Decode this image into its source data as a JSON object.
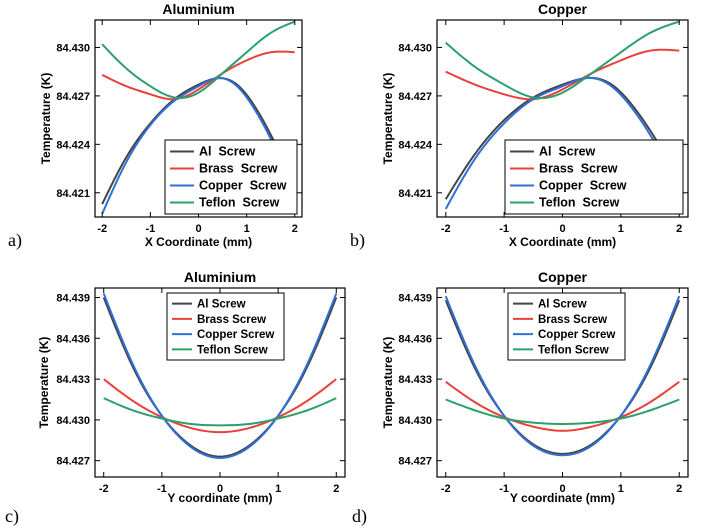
{
  "chart_data": [
    {
      "panel": "a)",
      "type": "line",
      "title": "Aluminium",
      "xlabel": "X Coordinate (mm)",
      "ylabel": "Temperature (K)",
      "xlim": [
        -2.15,
        2.15
      ],
      "ylim": [
        84.4195,
        84.4317
      ],
      "xticks": [
        -2,
        -1,
        0,
        1,
        2
      ],
      "yticks": [
        84.421,
        84.424,
        84.427,
        84.43
      ],
      "ytick_labels": [
        "84.421",
        "84.424",
        "84.427",
        "84.430"
      ],
      "legend_position": "lower-center",
      "series": [
        {
          "name": "Al  Screw",
          "color": "#444444",
          "x": [
            -2,
            -1.5,
            -1,
            -0.5,
            0,
            0.4,
            0.8,
            1.2,
            1.6,
            2
          ],
          "y": [
            84.4203,
            84.4232,
            84.4253,
            84.4268,
            84.4277,
            84.4281,
            84.4277,
            84.4262,
            84.424,
            84.4214
          ]
        },
        {
          "name": "Brass  Screw",
          "color": "#e8413c",
          "x": [
            -2,
            -1.5,
            -1,
            -0.5,
            0,
            0.5,
            1,
            1.5,
            2
          ],
          "y": [
            84.4283,
            84.4276,
            84.4271,
            84.4268,
            84.4274,
            84.4284,
            84.4292,
            84.4297,
            84.4297
          ]
        },
        {
          "name": "Copper  Screw",
          "color": "#2f6fd6",
          "x": [
            -2,
            -1.5,
            -1,
            -0.5,
            0,
            0.4,
            0.8,
            1.2,
            1.6,
            2
          ],
          "y": [
            84.4197,
            84.4229,
            84.4252,
            84.4267,
            84.4276,
            84.4281,
            84.4276,
            84.426,
            84.4237,
            84.4208
          ]
        },
        {
          "name": "Teflon  Screw",
          "color": "#2aa06a",
          "x": [
            -2,
            -1.5,
            -1,
            -0.5,
            0,
            0.5,
            1,
            1.5,
            2
          ],
          "y": [
            84.4302,
            84.4287,
            84.4276,
            84.4269,
            84.4272,
            84.4284,
            84.4297,
            84.4309,
            84.4316
          ]
        }
      ]
    },
    {
      "panel": "b)",
      "type": "line",
      "title": "Copper",
      "xlabel": "X Coordinate (mm)",
      "ylabel": "Temperature (K)",
      "xlim": [
        -2.15,
        2.15
      ],
      "ylim": [
        84.4195,
        84.4317
      ],
      "xticks": [
        -2,
        -1,
        0,
        1,
        2
      ],
      "yticks": [
        84.421,
        84.424,
        84.427,
        84.43
      ],
      "ytick_labels": [
        "84.421",
        "84.424",
        "84.427",
        "84.430"
      ],
      "legend_position": "lower-center",
      "series": [
        {
          "name": "Al  Screw",
          "color": "#444444",
          "x": [
            -2,
            -1.5,
            -1,
            -0.5,
            0,
            0.4,
            0.8,
            1.2,
            1.6,
            2
          ],
          "y": [
            84.4206,
            84.4234,
            84.4255,
            84.4269,
            84.4277,
            84.4281,
            84.4278,
            84.4264,
            84.4243,
            84.4219
          ]
        },
        {
          "name": "Brass  Screw",
          "color": "#e8413c",
          "x": [
            -2,
            -1.5,
            -1,
            -0.5,
            0,
            0.5,
            1,
            1.5,
            2
          ],
          "y": [
            84.4285,
            84.4277,
            84.4271,
            84.4268,
            84.4274,
            84.4284,
            84.4292,
            84.4298,
            84.4298
          ]
        },
        {
          "name": "Copper  Screw",
          "color": "#2f6fd6",
          "x": [
            -2,
            -1.5,
            -1,
            -0.5,
            0,
            0.4,
            0.8,
            1.2,
            1.6,
            2
          ],
          "y": [
            84.42,
            84.4231,
            84.4253,
            84.4268,
            84.4276,
            84.4281,
            84.4277,
            84.4262,
            84.424,
            84.4214
          ]
        },
        {
          "name": "Teflon  Screw",
          "color": "#2aa06a",
          "x": [
            -2,
            -1.5,
            -1,
            -0.5,
            0,
            0.5,
            1,
            1.5,
            2
          ],
          "y": [
            84.4303,
            84.4288,
            84.4277,
            84.4269,
            84.4272,
            84.4284,
            84.4297,
            84.4309,
            84.4316
          ]
        }
      ]
    },
    {
      "panel": "c)",
      "type": "line",
      "title": "Aluminium",
      "xlabel": "Y coordinate (mm)",
      "ylabel": "Temperature (K)",
      "xlim": [
        -2.15,
        2.15
      ],
      "ylim": [
        84.4258,
        84.4397
      ],
      "xticks": [
        -2,
        -1,
        0,
        1,
        2
      ],
      "yticks": [
        84.427,
        84.43,
        84.433,
        84.436,
        84.439
      ],
      "ytick_labels": [
        "84.427",
        "84.430",
        "84.433",
        "84.436",
        "84.439"
      ],
      "legend_position": "top-center",
      "series": [
        {
          "name": "Al Screw",
          "color": "#444444",
          "x": [
            -2,
            -1.5,
            -1,
            -0.5,
            0,
            0.5,
            1,
            1.5,
            2
          ],
          "y": [
            84.439,
            84.4339,
            84.4303,
            84.4281,
            84.4273,
            84.4281,
            84.4303,
            84.4339,
            84.439
          ]
        },
        {
          "name": "Brass Screw",
          "color": "#e8413c",
          "x": [
            -2,
            -1.5,
            -1,
            -0.5,
            0,
            0.5,
            1,
            1.5,
            2
          ],
          "y": [
            84.433,
            84.4314,
            84.4302,
            84.4294,
            84.4291,
            84.4294,
            84.4302,
            84.4314,
            84.433
          ]
        },
        {
          "name": "Copper Screw",
          "color": "#2f6fd6",
          "x": [
            -2,
            -1.5,
            -1,
            -0.5,
            0,
            0.5,
            1,
            1.5,
            2
          ],
          "y": [
            84.4393,
            84.4341,
            84.4303,
            84.428,
            84.4272,
            84.428,
            84.4303,
            84.4341,
            84.4393
          ]
        },
        {
          "name": "Teflon Screw",
          "color": "#2aa06a",
          "x": [
            -2,
            -1.5,
            -1,
            -0.5,
            0,
            0.5,
            1,
            1.5,
            2
          ],
          "y": [
            84.4316,
            84.4307,
            84.4301,
            84.4297,
            84.4296,
            84.4297,
            84.4301,
            84.4307,
            84.4316
          ]
        }
      ]
    },
    {
      "panel": "d)",
      "type": "line",
      "title": "Copper",
      "xlabel": "Y coordinate (mm)",
      "ylabel": "Temperature (K)",
      "xlim": [
        -2.15,
        2.15
      ],
      "ylim": [
        84.4258,
        84.4397
      ],
      "xticks": [
        -2,
        -1,
        0,
        1,
        2
      ],
      "yticks": [
        84.427,
        84.43,
        84.433,
        84.436,
        84.439
      ],
      "ytick_labels": [
        "84.427",
        "84.430",
        "84.433",
        "84.436",
        "84.439"
      ],
      "legend_position": "top-center",
      "series": [
        {
          "name": "Al Screw",
          "color": "#444444",
          "x": [
            -2,
            -1.5,
            -1,
            -0.5,
            0,
            0.5,
            1,
            1.5,
            2
          ],
          "y": [
            84.4388,
            84.4338,
            84.4303,
            84.4282,
            84.4275,
            84.4282,
            84.4303,
            84.4338,
            84.4388
          ]
        },
        {
          "name": "Brass Screw",
          "color": "#e8413c",
          "x": [
            -2,
            -1.5,
            -1,
            -0.5,
            0,
            0.5,
            1,
            1.5,
            2
          ],
          "y": [
            84.4328,
            84.4313,
            84.4302,
            84.4295,
            84.4292,
            84.4295,
            84.4302,
            84.4313,
            84.4328
          ]
        },
        {
          "name": "Copper Screw",
          "color": "#2f6fd6",
          "x": [
            -2,
            -1.5,
            -1,
            -0.5,
            0,
            0.5,
            1,
            1.5,
            2
          ],
          "y": [
            84.4391,
            84.434,
            84.4303,
            84.4281,
            84.4274,
            84.4281,
            84.4303,
            84.434,
            84.4391
          ]
        },
        {
          "name": "Teflon Screw",
          "color": "#2aa06a",
          "x": [
            -2,
            -1.5,
            -1,
            -0.5,
            0,
            0.5,
            1,
            1.5,
            2
          ],
          "y": [
            84.4315,
            84.4307,
            84.4301,
            84.4298,
            84.4297,
            84.4298,
            84.4301,
            84.4307,
            84.4315
          ]
        }
      ]
    }
  ]
}
